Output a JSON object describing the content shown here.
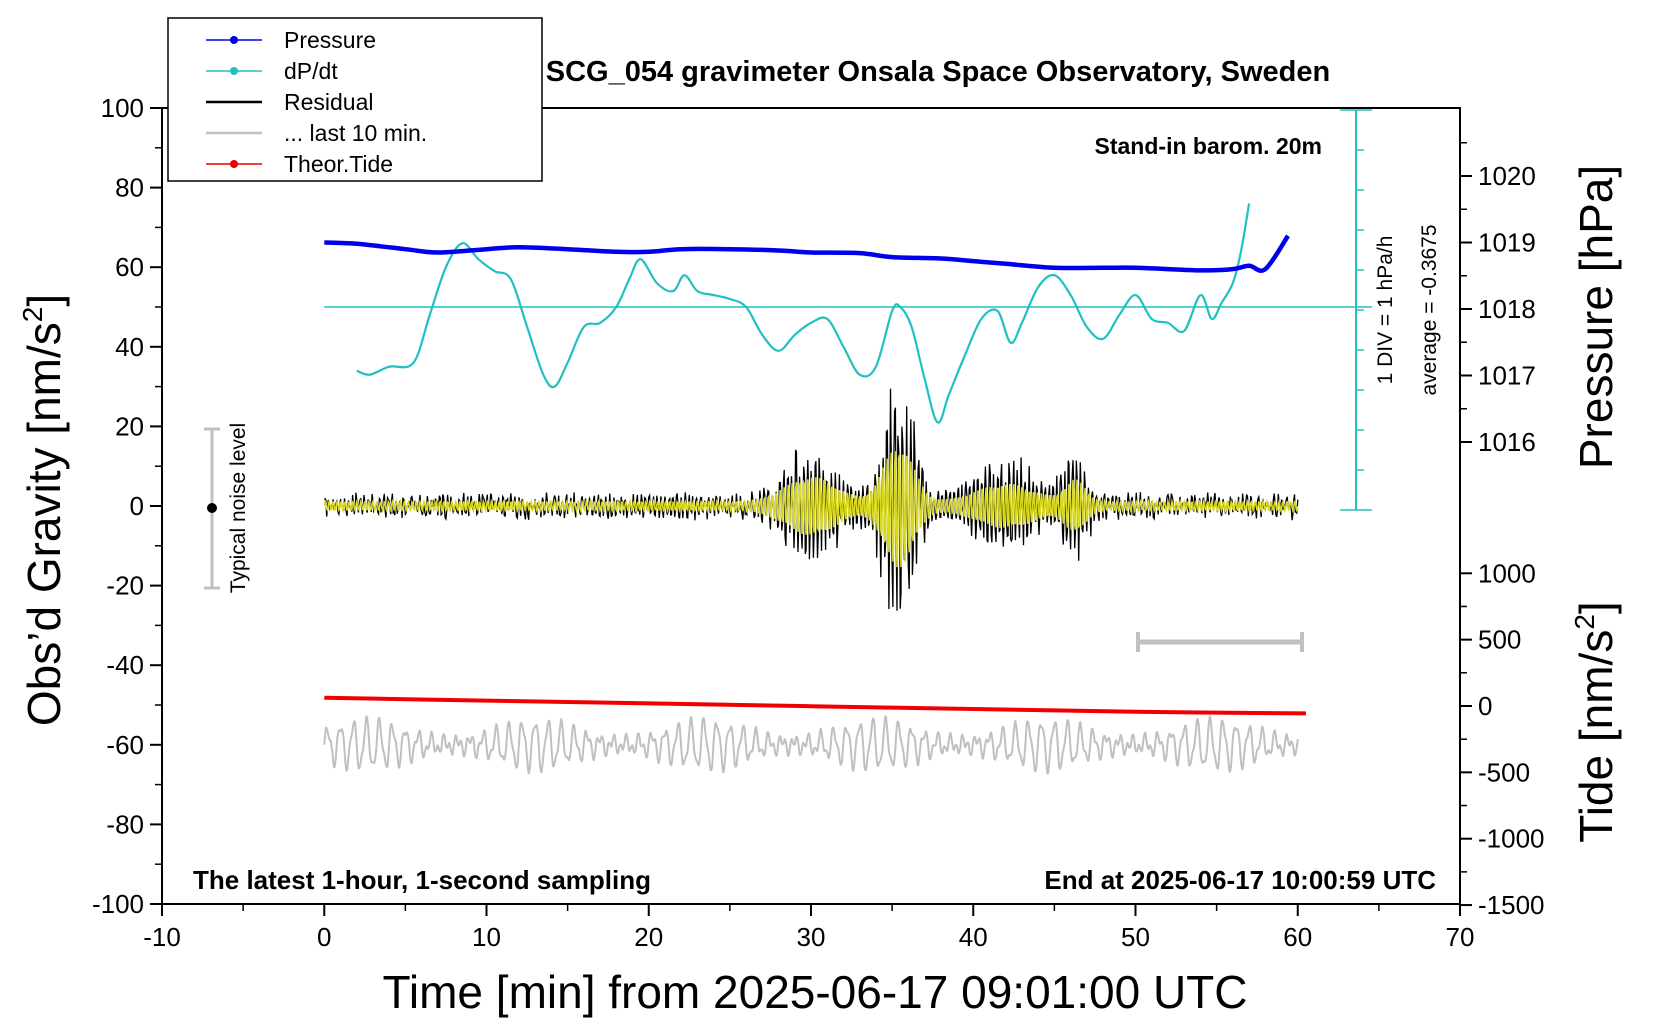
{
  "chart_data": {
    "type": "line",
    "title": "SCG_054 gravimeter Onsala Space Observatory, Sweden",
    "xlabel": "Time [min] from 2025-06-17 09:01:00 UTC",
    "ylabel_left": "Obs’d Gravity [nm/s",
    "ylabel_left_sup": "2",
    "ylabel_left_end": "]",
    "ylabel_pressure": "Pressure [hPa]",
    "ylabel_tide": "Tide [nm/s",
    "ylabel_tide_sup": "2",
    "ylabel_tide_end": "]",
    "xlim": [
      -10,
      70
    ],
    "ylim_left": [
      -100,
      100
    ],
    "x_ticks": [
      "-10",
      "0",
      "10",
      "20",
      "30",
      "40",
      "50",
      "60",
      "70"
    ],
    "y_ticks_left": [
      "100",
      "80",
      "60",
      "40",
      "20",
      "0",
      "-20",
      "-40",
      "-60",
      "-80",
      "-100"
    ],
    "pressure_ticks": [
      "1020",
      "1019",
      "1018",
      "1017",
      "1016"
    ],
    "tide_ticks": [
      "1000",
      "500",
      "0",
      "-500",
      "-1000",
      "-1500"
    ],
    "annotations": {
      "barometer": "Stand-in barom. 20m",
      "div_label": "1 DIV = 1 hPa/h",
      "average_label": "average = -0.3675",
      "noise_label": "Typical noise level",
      "bottom_left": "The latest 1-hour, 1-second sampling",
      "bottom_right": "End at 2025-06-17 10:00:59 UTC"
    },
    "legend": {
      "placement": "top-left",
      "entries": [
        {
          "label": "Pressure",
          "color": "#0000ee"
        },
        {
          "label": "dP/dt",
          "color": "#20c0c0"
        },
        {
          "label": "Residual",
          "color": "#000000"
        },
        {
          "label": "... last 10 min.",
          "color": "#c0c0c0"
        },
        {
          "label": "Theor.Tide",
          "color": "#ee0000"
        }
      ]
    },
    "series": [
      {
        "name": "Pressure",
        "color": "#0000ee",
        "units": "hPa",
        "x": [
          0,
          2,
          5,
          7,
          10,
          12,
          15,
          18,
          20,
          22,
          25,
          28,
          30,
          33,
          35,
          38,
          40,
          42,
          45,
          48,
          50,
          52,
          54,
          56,
          57,
          58,
          59.4
        ],
        "y": [
          1019.0,
          1018.98,
          1018.9,
          1018.85,
          1018.9,
          1018.93,
          1018.9,
          1018.86,
          1018.86,
          1018.9,
          1018.9,
          1018.88,
          1018.85,
          1018.84,
          1018.78,
          1018.76,
          1018.72,
          1018.68,
          1018.62,
          1018.62,
          1018.62,
          1018.6,
          1018.58,
          1018.6,
          1018.65,
          1018.6,
          1019.1
        ]
      },
      {
        "name": "dP/dt",
        "color": "#20c0c0",
        "units": "gravity-axis display units (1 DIV = 1 hPa/h)",
        "x": [
          2,
          2.8,
          4,
          5.5,
          6.5,
          7.5,
          8.5,
          9.5,
          10.5,
          11.5,
          12.5,
          13.5,
          14.2,
          15,
          16,
          17,
          18,
          18.8,
          19.5,
          20.5,
          21.5,
          22.2,
          23,
          24,
          25,
          26,
          27,
          28,
          29,
          30,
          31,
          32,
          33,
          34,
          35,
          35.5,
          36.2,
          37,
          37.8,
          38.5,
          39.5,
          40.5,
          41.5,
          42.3,
          43,
          44,
          45,
          46,
          47,
          48,
          49,
          50,
          51,
          52,
          53,
          54,
          54.7,
          55.3,
          56,
          56.5,
          57
        ],
        "y": [
          34,
          33,
          35,
          36,
          48,
          60,
          66,
          62,
          59,
          57,
          45,
          33,
          30,
          36,
          45,
          46,
          50,
          57,
          62,
          56,
          54,
          58,
          54,
          53,
          52,
          50,
          43,
          39,
          43,
          46,
          47,
          40,
          33,
          35,
          49,
          50,
          45,
          32,
          21,
          28,
          38,
          47,
          49,
          41,
          46,
          55,
          58,
          53,
          45,
          42,
          48,
          53,
          47,
          46,
          44,
          53,
          47,
          51,
          56,
          64,
          76
        ]
      },
      {
        "name": "Residual",
        "color": "#000000",
        "units": "nm/s^2",
        "x": [
          0,
          60
        ],
        "y": [
          0,
          0
        ],
        "peak_min": -38,
        "peak_max": 45,
        "peak_time": 35.5
      },
      {
        "name": "... last 10 min.",
        "color": "#c0c0c0",
        "units": "nm/s^2",
        "x": [
          0,
          60
        ],
        "y": [
          -60,
          -60
        ]
      },
      {
        "name": "Theor.Tide",
        "color": "#ee0000",
        "units": "nm/s^2",
        "x": [
          0,
          10,
          20,
          30,
          40,
          50,
          60.5
        ],
        "y": [
          -48.2,
          -48.9,
          -49.6,
          -50.3,
          -51.0,
          -51.7,
          -52.1
        ]
      }
    ]
  }
}
